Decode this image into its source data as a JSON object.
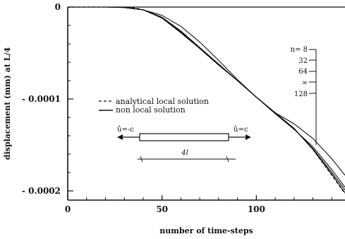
{
  "chart_data": {
    "type": "line",
    "xlabel": "number of time-steps",
    "ylabel": "displacement (mm) at L/4",
    "xlim": [
      0,
      147
    ],
    "ylim": [
      -0.00021,
      0
    ],
    "x_ticks": [
      0,
      50,
      100
    ],
    "x_tick_labels": [
      "0",
      "50",
      "100"
    ],
    "y_ticks": [
      0,
      -0.0001,
      -0.0002
    ],
    "y_tick_labels": [
      "0",
      "- 0.0001",
      "- 0.0002"
    ],
    "grid": false,
    "legend": {
      "position": "center-left",
      "entries": [
        {
          "label": "analytical local solution",
          "style": "dashed"
        },
        {
          "label": "non local solution",
          "style": "solid"
        }
      ]
    },
    "series": [
      {
        "label": "analytical local solution",
        "style": "dashed",
        "x": [
          0,
          10,
          20,
          30,
          35,
          40,
          45,
          50,
          60,
          70,
          80,
          90,
          100,
          110,
          120,
          130,
          140,
          147
        ],
        "y": [
          0,
          0,
          0,
          0,
          -5e-07,
          -3e-06,
          -7e-06,
          -1.2e-05,
          -2.8e-05,
          -4.5e-05,
          -6.3e-05,
          -8e-05,
          -9.8e-05,
          -0.000115,
          -0.000132,
          -0.000155,
          -0.000183,
          -0.000203
        ]
      },
      {
        "label": "n = 8",
        "style": "solid",
        "x": [
          0,
          10,
          20,
          30,
          40,
          45,
          50,
          60,
          70,
          80,
          90,
          100,
          110,
          120,
          130,
          140,
          147
        ],
        "y": [
          0,
          0,
          0,
          -5e-07,
          -3e-06,
          -6e-06,
          -9e-06,
          -2.1e-05,
          -3.8e-05,
          -5.8e-05,
          -7.9e-05,
          -9.8e-05,
          -0.000115,
          -0.000127,
          -0.000143,
          -0.000165,
          -0.000183
        ]
      },
      {
        "label": "n = 32",
        "style": "solid",
        "x": [
          0,
          20,
          30,
          40,
          50,
          60,
          70,
          80,
          90,
          100,
          110,
          120,
          130,
          140,
          147
        ],
        "y": [
          0,
          0,
          -5e-07,
          -3e-06,
          -1.1e-05,
          -2.6e-05,
          -4.4e-05,
          -6.2e-05,
          -8e-05,
          -9.8e-05,
          -0.000116,
          -0.000133,
          -0.000152,
          -0.000177,
          -0.000196
        ]
      },
      {
        "label": "n = 64",
        "style": "solid",
        "x": [
          0,
          20,
          30,
          40,
          50,
          60,
          70,
          80,
          90,
          100,
          110,
          120,
          130,
          140,
          147
        ],
        "y": [
          0,
          0,
          0,
          -3e-06,
          -1.2e-05,
          -2.7e-05,
          -4.5e-05,
          -6.3e-05,
          -8e-05,
          -9.8e-05,
          -0.000115,
          -0.000132,
          -0.000154,
          -0.00018,
          -0.000199
        ]
      },
      {
        "label": "n = 128",
        "style": "solid",
        "x": [
          0,
          20,
          30,
          40,
          50,
          60,
          70,
          80,
          90,
          100,
          110,
          120,
          130,
          140,
          147
        ],
        "y": [
          0,
          0,
          0,
          -3e-06,
          -1.2e-05,
          -2.8e-05,
          -4.5e-05,
          -6.3e-05,
          -8e-05,
          -9.8e-05,
          -0.000115,
          -0.000132,
          -0.000155,
          -0.000182,
          -0.000202
        ]
      }
    ],
    "reference_line": {
      "y": 0
    },
    "annotations": {
      "n_labels": [
        "n= 8",
        "32",
        "64",
        "∞",
        "128"
      ],
      "bar_left_label": "û=-c",
      "bar_right_label": "û=c",
      "bar_length_label": "4l"
    }
  }
}
